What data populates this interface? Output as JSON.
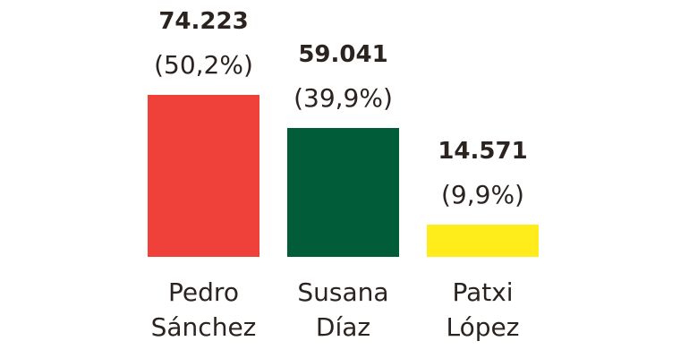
{
  "chart_data": {
    "type": "bar",
    "categories": [
      "Pedro Sánchez",
      "Susana Díaz",
      "Patxi López"
    ],
    "values": [
      74223,
      59041,
      14571
    ],
    "value_labels": [
      "74.223",
      "59.041",
      "14.571"
    ],
    "share_labels": [
      "(50,2%)",
      "(39,9%)",
      "(9,9%)"
    ],
    "colors": [
      "#f0403a",
      "#005c39",
      "#ffec1a"
    ]
  }
}
